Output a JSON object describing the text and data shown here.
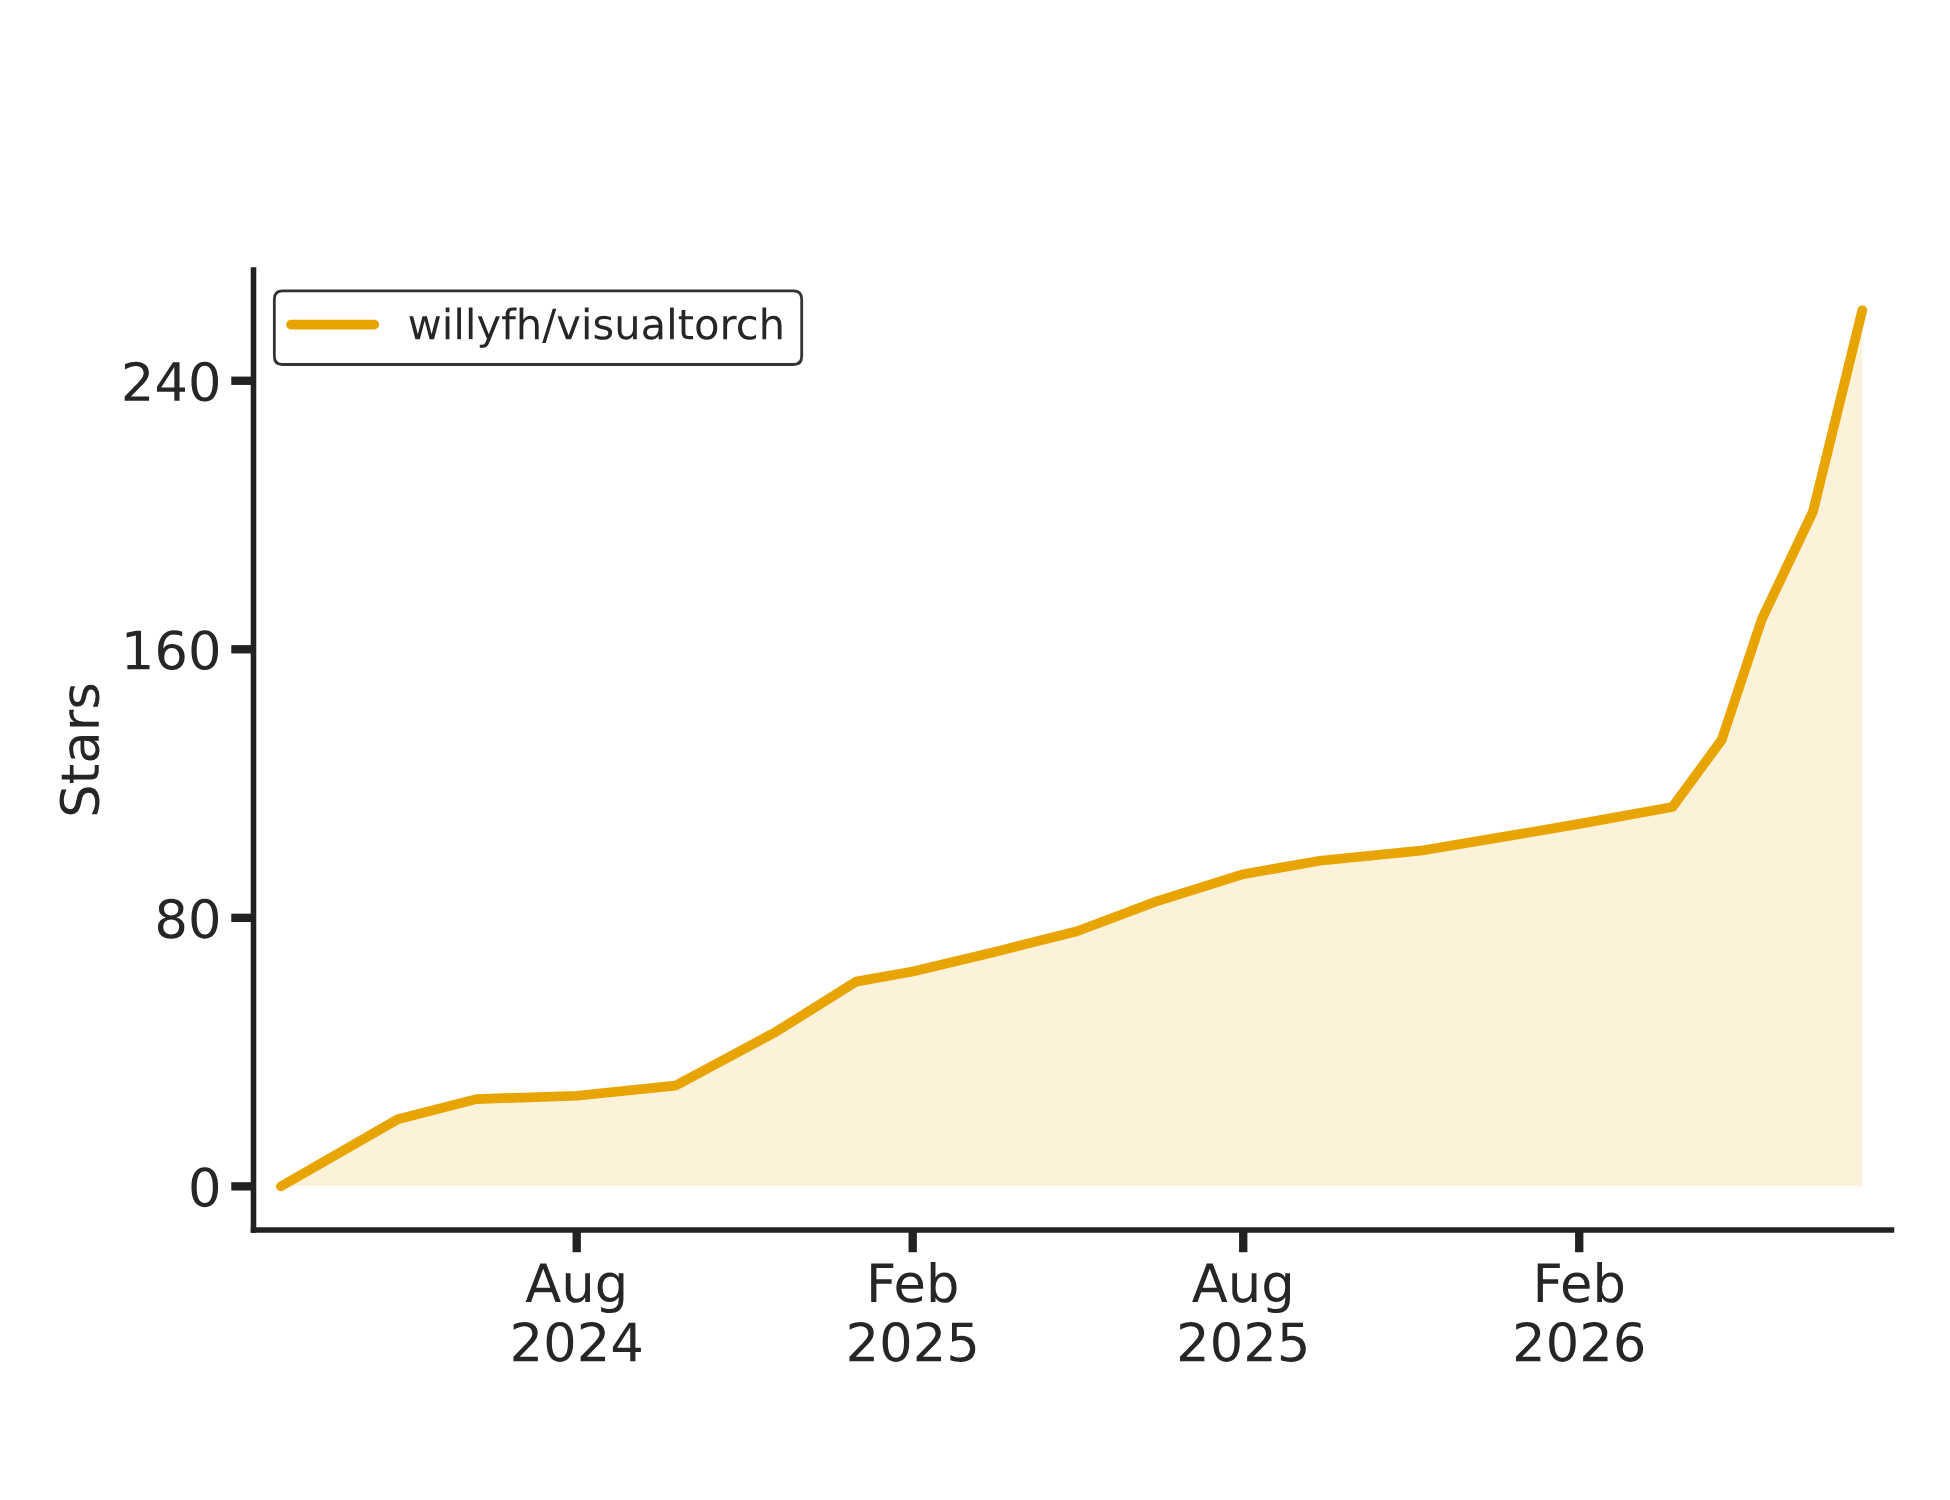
{
  "chart_data": {
    "type": "area",
    "ylabel": "Stars",
    "x": [
      "2024-02-21",
      "2024-04-25",
      "2024-06-07",
      "2024-08-01",
      "2024-09-24",
      "2024-11-18",
      "2025-01-01",
      "2025-02-01",
      "2025-03-19",
      "2025-05-02",
      "2025-06-15",
      "2025-08-01",
      "2025-09-12",
      "2025-11-06",
      "2025-12-31",
      "2026-02-01",
      "2026-03-24",
      "2026-04-20",
      "2026-05-12",
      "2026-06-09",
      "2026-07-06"
    ],
    "series": [
      {
        "name": "willyfh/visualtorch",
        "color": "#e8a400",
        "values": [
          0,
          20,
          26,
          27,
          30,
          46,
          61,
          64,
          70,
          76,
          85,
          93,
          97,
          100,
          105,
          108,
          113,
          133,
          169,
          201,
          261
        ]
      }
    ],
    "xlim": [
      "2024-02-06",
      "2026-07-22"
    ],
    "ylim": [
      -13,
      273
    ],
    "xticks": [
      {
        "value": "2024-08-01",
        "label": "Aug\n2024"
      },
      {
        "value": "2025-02-01",
        "label": "Feb\n2025"
      },
      {
        "value": "2025-08-01",
        "label": "Aug\n2025"
      },
      {
        "value": "2026-02-01",
        "label": "Feb\n2026"
      }
    ],
    "yticks": [
      0,
      80,
      160,
      240
    ],
    "legend": "top left",
    "grid": false
  }
}
